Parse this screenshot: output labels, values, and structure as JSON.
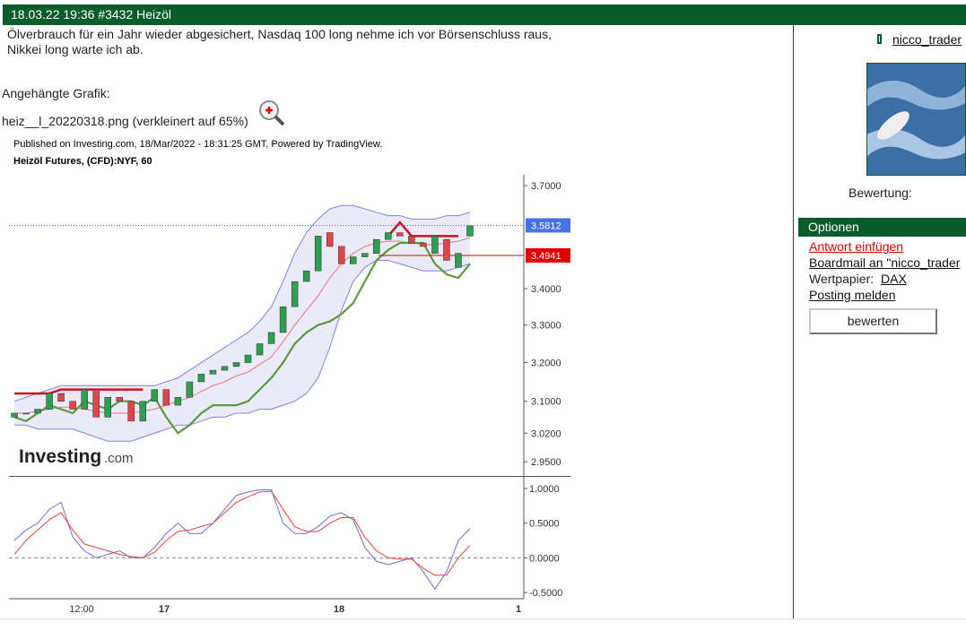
{
  "header": {
    "title": "18.03.22 19:36 #3432 Heizöl"
  },
  "post": {
    "lines": [
      "Ölverbrauch für ein Jahr wieder abgesichert, Nasdaq 100 long nehme ich vor Börsenschluss raus,",
      "Nikkei long warte ich ab."
    ],
    "attachment_label": "Angehängte Grafik:",
    "attachment_file": "heiz__l_20220318.png (verkleinert auf 65%)"
  },
  "sidebar": {
    "user": "nicco_trader",
    "rating_label": "Bewertung:",
    "options_title": "Optionen",
    "links": [
      "Antwort einfügen",
      "Boardmail an \"nicco_trader"
    ],
    "security_label": "Wertpapier:",
    "security": "DAX",
    "report": "Posting melden",
    "button": "bewerten"
  },
  "chart_data": {
    "type": "candlestick",
    "published": "Published on Investing.com, 18/Mar/2022 - 18:31:25 GMT, Powered by TradingView.",
    "title": "Heizöl Futures, (CFD):NYF, 60",
    "logo": "Investing",
    "logo_suffix": ".com",
    "xlabels": [
      "12:00",
      "17",
      "18",
      "1"
    ],
    "log_scale": true,
    "ylim": [
      2.918,
      3.733
    ],
    "yticks": [
      {
        "value": 3.7,
        "label": "3.7000"
      },
      {
        "value": 3.4,
        "label": "3.4000"
      },
      {
        "value": 3.3,
        "label": "3.3000"
      },
      {
        "value": 3.2,
        "label": "3.2000"
      },
      {
        "value": 3.1,
        "label": "3.1000"
      },
      {
        "value": 3.02,
        "label": "3.0200"
      },
      {
        "value": 2.95,
        "label": "2.9500"
      }
    ],
    "price_marks": [
      {
        "value": 3.5812,
        "label": "3.5812",
        "color": "#4a72e8"
      },
      {
        "value": 3.4941,
        "label": "3.4941",
        "color": "#e00000"
      }
    ],
    "open": [
      3.06,
      3.07,
      3.07,
      3.08,
      3.12,
      3.1,
      3.08,
      3.13,
      3.06,
      3.11,
      3.1,
      3.05,
      3.1,
      3.13,
      3.09,
      3.11,
      3.15,
      3.17,
      3.18,
      3.19,
      3.2,
      3.22,
      3.25,
      3.28,
      3.35,
      3.42,
      3.45,
      3.56,
      3.52,
      3.47,
      3.49,
      3.5,
      3.54,
      3.56,
      3.55,
      3.53,
      3.5,
      3.54,
      3.46,
      3.55
    ],
    "close": [
      3.07,
      3.07,
      3.08,
      3.12,
      3.1,
      3.08,
      3.13,
      3.06,
      3.11,
      3.1,
      3.05,
      3.1,
      3.13,
      3.09,
      3.11,
      3.15,
      3.17,
      3.18,
      3.19,
      3.2,
      3.22,
      3.25,
      3.28,
      3.35,
      3.42,
      3.45,
      3.55,
      3.52,
      3.47,
      3.49,
      3.5,
      3.54,
      3.56,
      3.55,
      3.53,
      3.52,
      3.55,
      3.48,
      3.5,
      3.58
    ],
    "up_color": "#2e9e4f",
    "down_color": "#e0454a",
    "overlays": [
      {
        "color": "#7b83e8",
        "values": [
          3.1,
          3.11,
          3.12,
          3.13,
          3.14,
          3.14,
          3.14,
          3.14,
          3.14,
          3.14,
          3.14,
          3.14,
          3.14,
          3.15,
          3.16,
          3.18,
          3.2,
          3.22,
          3.24,
          3.26,
          3.28,
          3.31,
          3.35,
          3.42,
          3.5,
          3.56,
          3.6,
          3.63,
          3.64,
          3.64,
          3.63,
          3.62,
          3.61,
          3.61,
          3.6,
          3.6,
          3.6,
          3.61,
          3.61,
          3.62
        ]
      },
      {
        "color": "#7b83e8",
        "values": [
          3.04,
          3.04,
          3.03,
          3.03,
          3.03,
          3.03,
          3.02,
          3.01,
          3.0,
          3.0,
          3.0,
          3.01,
          3.02,
          3.03,
          3.04,
          3.04,
          3.05,
          3.06,
          3.06,
          3.07,
          3.07,
          3.08,
          3.08,
          3.09,
          3.1,
          3.12,
          3.16,
          3.24,
          3.34,
          3.42,
          3.46,
          3.48,
          3.48,
          3.47,
          3.46,
          3.45,
          3.45,
          3.45,
          3.46,
          3.47
        ]
      },
      {
        "color": "#e8777c",
        "values": [
          3.07,
          3.07,
          3.075,
          3.08,
          3.085,
          3.085,
          3.08,
          3.075,
          3.07,
          3.07,
          3.07,
          3.075,
          3.08,
          3.09,
          3.1,
          3.11,
          3.125,
          3.14,
          3.15,
          3.165,
          3.175,
          3.195,
          3.215,
          3.255,
          3.3,
          3.34,
          3.38,
          3.43,
          3.47,
          3.5,
          3.52,
          3.53,
          3.535,
          3.535,
          3.53,
          3.525,
          3.525,
          3.53,
          3.535,
          3.545
        ]
      },
      {
        "color": "#5a9a3c",
        "values": [
          3.06,
          3.05,
          3.07,
          3.09,
          3.08,
          3.07,
          3.1,
          3.09,
          3.08,
          3.1,
          3.1,
          3.09,
          3.11,
          3.06,
          3.02,
          3.04,
          3.07,
          3.09,
          3.09,
          3.09,
          3.1,
          3.13,
          3.16,
          3.2,
          3.25,
          3.28,
          3.3,
          3.31,
          3.33,
          3.36,
          3.42,
          3.48,
          3.51,
          3.53,
          3.53,
          3.53,
          3.47,
          3.44,
          3.43,
          3.47
        ]
      },
      {
        "color": "#d0101a",
        "values": [
          3.12,
          3.12,
          3.12,
          3.12,
          3.13,
          3.13,
          3.13,
          3.13,
          3.13,
          3.13,
          3.13,
          3.13,
          null,
          null,
          null,
          null,
          null,
          null,
          null,
          null,
          null,
          null,
          null,
          null,
          null,
          null,
          null,
          null,
          null,
          null,
          null,
          null,
          3.55,
          3.59,
          3.55,
          3.55,
          3.55,
          3.55,
          3.55,
          null
        ]
      }
    ],
    "osc": {
      "ylim": [
        -0.59,
        1.155
      ],
      "yticks": [
        {
          "value": 1,
          "label": "1.0000"
        },
        {
          "value": 0.5,
          "label": "0.5000"
        },
        {
          "value": 0,
          "label": "0.0000"
        },
        {
          "value": -0.5,
          "label": "-0.5000"
        }
      ],
      "series": [
        {
          "color": "#6b6fd0",
          "values": [
            0.25,
            0.4,
            0.5,
            0.7,
            0.8,
            0.3,
            0.1,
            0.0,
            0.05,
            0.1,
            0.0,
            0.0,
            0.15,
            0.35,
            0.5,
            0.35,
            0.35,
            0.5,
            0.7,
            0.9,
            0.95,
            0.98,
            0.98,
            0.5,
            0.35,
            0.35,
            0.45,
            0.6,
            0.65,
            0.55,
            0.15,
            -0.05,
            -0.1,
            -0.05,
            0.0,
            -0.2,
            -0.45,
            -0.2,
            0.25,
            0.42
          ]
        },
        {
          "color": "#f04040",
          "values": [
            0.05,
            0.25,
            0.4,
            0.55,
            0.65,
            0.4,
            0.2,
            0.15,
            0.1,
            0.05,
            0.02,
            0.0,
            0.08,
            0.25,
            0.38,
            0.4,
            0.45,
            0.5,
            0.65,
            0.8,
            0.88,
            0.95,
            0.96,
            0.7,
            0.45,
            0.38,
            0.38,
            0.5,
            0.58,
            0.58,
            0.3,
            0.1,
            0.0,
            -0.02,
            -0.02,
            -0.15,
            -0.25,
            -0.25,
            0.0,
            0.18
          ]
        }
      ]
    }
  }
}
